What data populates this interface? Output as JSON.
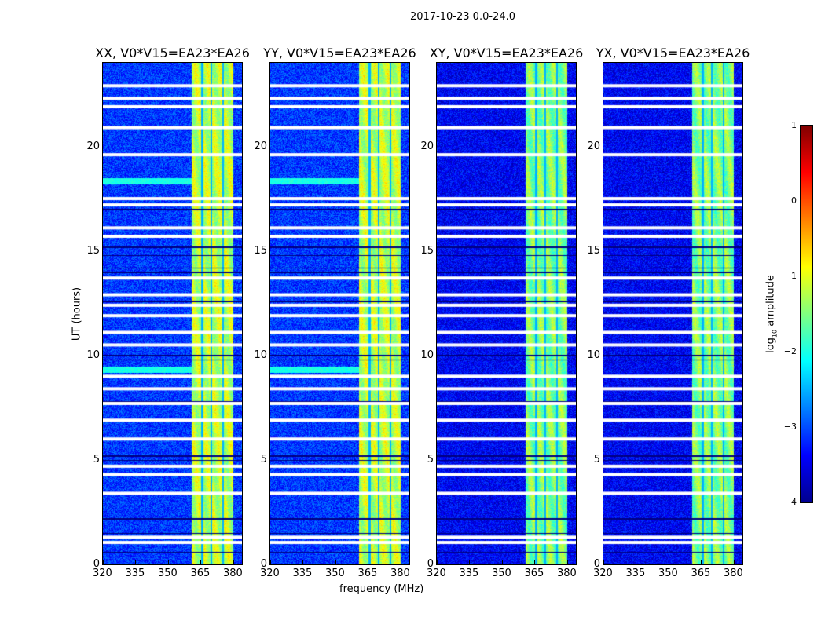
{
  "suptitle": "2017-10-23 0.0-24.0",
  "chart_data": {
    "type": "heatmap",
    "title": "2017-10-23 0.0-24.0",
    "xlabel": "frequency (MHz)",
    "ylabel": "UT (hours)",
    "xlim": [
      320,
      384
    ],
    "ylim": [
      0,
      24
    ],
    "xticks": [
      "320",
      "335",
      "350",
      "365",
      "380"
    ],
    "xtick_values": [
      320,
      335,
      350,
      365,
      380
    ],
    "yticks": [
      "0",
      "5",
      "10",
      "15",
      "20"
    ],
    "ytick_values": [
      0,
      5,
      10,
      15,
      20
    ],
    "panels": [
      {
        "title": "XX, V0*V15=EA23*EA26"
      },
      {
        "title": "YY, V0*V15=EA23*EA26"
      },
      {
        "title": "XY, V0*V15=EA23*EA26"
      },
      {
        "title": "YX, V0*V15=EA23*EA26"
      }
    ],
    "colorbar": {
      "label_prefix": "log",
      "label_sub": "10",
      "label_suffix": " amplitude",
      "range": [
        -4,
        1
      ],
      "ticks": [
        "1",
        "0",
        "−1",
        "−2",
        "−3",
        "−4"
      ],
      "tick_values": [
        1,
        0,
        -1,
        -2,
        -3,
        -4
      ],
      "colormap": "jet"
    },
    "background_log_amplitude": -3.1,
    "rfi_band_mhz": [
      360.5,
      380
    ],
    "rfi_band_log_amplitude": -1.2,
    "rfi_band_gaps_mhz": [
      365.5,
      369.8,
      375.2
    ],
    "flagged_hours": [
      1.05,
      1.3,
      3.4,
      4.3,
      4.7,
      6.0,
      6.9,
      7.7,
      8.4,
      9.0,
      10.5,
      11.1,
      11.9,
      12.4,
      12.9,
      13.7,
      15.7,
      16.1,
      17.2,
      17.5,
      19.6,
      20.9,
      21.9,
      22.3,
      22.9
    ],
    "dark_hours": [
      0.6,
      1.5,
      2.2,
      5.0,
      5.2,
      7.8,
      9.8,
      10.0,
      12.6,
      14.0,
      14.2,
      14.8,
      15.2,
      17.0
    ],
    "bright_hours": [
      [
        9.2,
        9.5
      ],
      [
        18.2,
        18.5
      ]
    ]
  }
}
